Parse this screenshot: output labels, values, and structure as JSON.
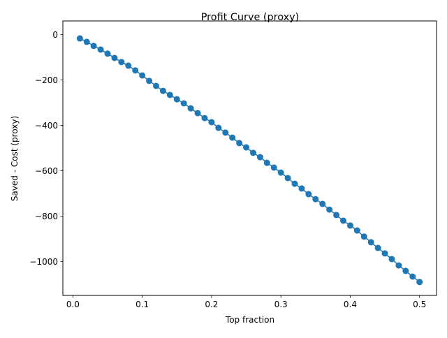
{
  "chart_data": {
    "type": "line",
    "title": "Profit Curve (proxy)",
    "xlabel": "Top fraction",
    "ylabel": "Saved - Cost (proxy)",
    "xlim": [
      -0.0145,
      0.5245
    ],
    "ylim": [
      -1149,
      60
    ],
    "grid": false,
    "marker": "circle",
    "color": "#1f77b4",
    "xticks": [
      0.0,
      0.1,
      0.2,
      0.3,
      0.4,
      0.5
    ],
    "xtick_labels": [
      "0.0",
      "0.1",
      "0.2",
      "0.3",
      "0.4",
      "0.5"
    ],
    "yticks": [
      0,
      -200,
      -400,
      -600,
      -800,
      -1000
    ],
    "ytick_labels": [
      "0",
      "−200",
      "−400",
      "−600",
      "−800",
      "−1000"
    ],
    "series": [
      {
        "name": "profit",
        "x": [
          0.01,
          0.02,
          0.03,
          0.04,
          0.05,
          0.06,
          0.07,
          0.08,
          0.09,
          0.1,
          0.11,
          0.12,
          0.13,
          0.14,
          0.15,
          0.16,
          0.17,
          0.18,
          0.19,
          0.2,
          0.21,
          0.22,
          0.23,
          0.24,
          0.25,
          0.26,
          0.27,
          0.28,
          0.29,
          0.3,
          0.31,
          0.32,
          0.33,
          0.34,
          0.35,
          0.36,
          0.37,
          0.38,
          0.39,
          0.4,
          0.41,
          0.42,
          0.43,
          0.44,
          0.45,
          0.46,
          0.47,
          0.48,
          0.49,
          0.5
        ],
        "y": [
          -17,
          -32,
          -50,
          -66,
          -84,
          -103,
          -121,
          -137,
          -158,
          -180,
          -204,
          -226,
          -248,
          -266,
          -285,
          -303,
          -325,
          -346,
          -368,
          -386,
          -411,
          -432,
          -454,
          -478,
          -497,
          -521,
          -540,
          -565,
          -586,
          -608,
          -632,
          -657,
          -678,
          -703,
          -725,
          -746,
          -771,
          -795,
          -820,
          -841,
          -863,
          -890,
          -915,
          -940,
          -964,
          -989,
          -1017,
          -1041,
          -1066,
          -1090
        ]
      }
    ]
  }
}
